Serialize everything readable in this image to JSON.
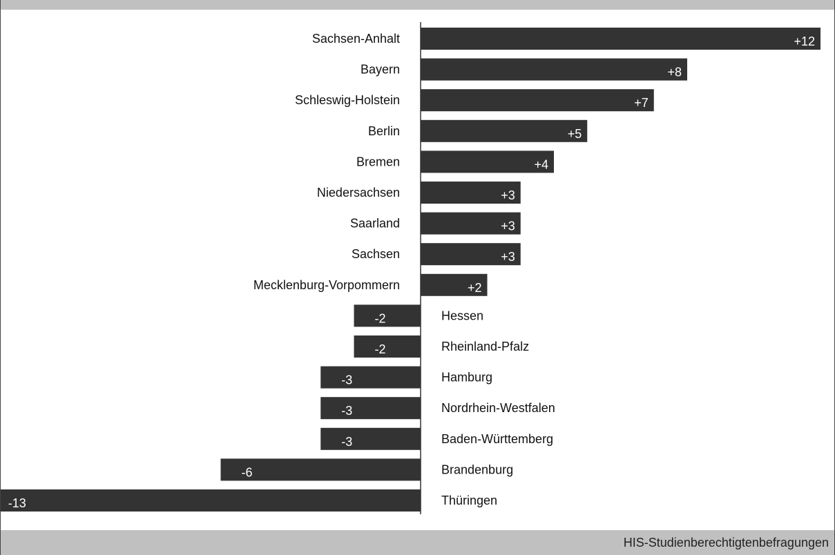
{
  "chart_data": {
    "type": "bar",
    "orientation": "horizontal",
    "categories": [
      "Sachsen-Anhalt",
      "Bayern",
      "Schleswig-Holstein",
      "Berlin",
      "Bremen",
      "Niedersachsen",
      "Saarland",
      "Sachsen",
      "Mecklenburg-Vorpommern",
      "Hessen",
      "Rheinland-Pfalz",
      "Hamburg",
      "Nordrhein-Westfalen",
      "Baden-Württemberg",
      "Brandenburg",
      "Thüringen"
    ],
    "values": [
      12,
      8,
      7,
      5,
      4,
      3,
      3,
      3,
      2,
      -2,
      -2,
      -3,
      -3,
      -3,
      -6,
      -13
    ],
    "value_labels": [
      "+12",
      "+8",
      "+7",
      "+5",
      "+4",
      "+3",
      "+3",
      "+3",
      "+2",
      "-2",
      "-2",
      "-3",
      "-3",
      "-3",
      "-6",
      "-13"
    ],
    "xlim": [
      -13,
      12
    ],
    "bar_color": "#333333",
    "grid": false,
    "legend": "none"
  },
  "footer": {
    "source": "HIS-Studienberechtigtenbefragungen"
  },
  "colors": {
    "band": "#c0c0c0",
    "bar": "#333333",
    "value_text": "#ffffff"
  }
}
